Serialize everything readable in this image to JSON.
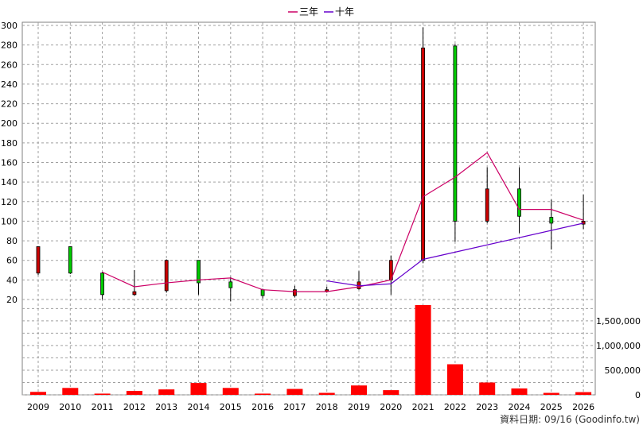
{
  "chart_data": {
    "type": "candlestick+line+bar",
    "legend": [
      {
        "label": "三年",
        "color": "#cc0066"
      },
      {
        "label": "十年",
        "color": "#6600cc"
      }
    ],
    "years": [
      "2009",
      "2010",
      "2011",
      "2012",
      "2013",
      "2014",
      "2015",
      "2016",
      "2017",
      "2018",
      "2019",
      "2020",
      "2021",
      "2022",
      "2023",
      "2024",
      "2025",
      "2026"
    ],
    "price_axis": {
      "ylim": [
        20,
        300
      ],
      "ticks": [
        20,
        40,
        60,
        80,
        100,
        120,
        140,
        160,
        180,
        200,
        220,
        240,
        260,
        280,
        300
      ]
    },
    "volume_axis": {
      "ylim": [
        0,
        1900000
      ],
      "ticks": [
        0,
        500000,
        1000000,
        1500000
      ],
      "tick_labels": [
        "0",
        "500,000",
        "1,000,000",
        "1,500,000"
      ]
    },
    "candles": [
      {
        "year": "2009",
        "open": 74,
        "close": 47,
        "high": 74,
        "low": 45
      },
      {
        "year": "2010",
        "open": 47,
        "close": 74,
        "high": 74,
        "low": 46
      },
      {
        "year": "2011",
        "open": 25,
        "close": 47,
        "high": 48,
        "low": 20
      },
      {
        "year": "2012",
        "open": 28,
        "close": 25,
        "high": 50,
        "low": 24
      },
      {
        "year": "2013",
        "open": 60,
        "close": 29,
        "high": 61,
        "low": 27
      },
      {
        "year": "2014",
        "open": 37,
        "close": 60,
        "high": 60,
        "low": 25
      },
      {
        "year": "2015",
        "open": 32,
        "close": 38,
        "high": 43,
        "low": 18
      },
      {
        "year": "2016",
        "open": 24,
        "close": 30,
        "high": 31,
        "low": 21
      },
      {
        "year": "2017",
        "open": 30,
        "close": 24,
        "high": 34,
        "low": 22
      },
      {
        "year": "2018",
        "open": 30,
        "close": 28,
        "high": 33,
        "low": 27
      },
      {
        "year": "2019",
        "open": 38,
        "close": 31,
        "high": 49,
        "low": 30
      },
      {
        "year": "2020",
        "open": 60,
        "close": 40,
        "high": 65,
        "low": 25
      },
      {
        "year": "2021",
        "open": 277,
        "close": 60,
        "high": 298,
        "low": 57
      },
      {
        "year": "2022",
        "open": 100,
        "close": 279,
        "high": 281,
        "low": 79
      },
      {
        "year": "2023",
        "open": 133,
        "close": 100,
        "high": 155,
        "low": 98
      },
      {
        "year": "2024",
        "open": 105,
        "close": 133,
        "high": 155,
        "low": 88
      },
      {
        "year": "2025",
        "open": 98,
        "close": 104,
        "high": 122,
        "low": 71
      },
      {
        "year": "2026",
        "open": 100,
        "close": 97,
        "high": 127,
        "low": 92
      }
    ],
    "series": [
      {
        "name": "三年",
        "color": "#cc0066",
        "points": [
          [
            "2011",
            48
          ],
          [
            "2012",
            33
          ],
          [
            "2013",
            37
          ],
          [
            "2014",
            40
          ],
          [
            "2015",
            42
          ],
          [
            "2016",
            30
          ],
          [
            "2017",
            28
          ],
          [
            "2018",
            28
          ],
          [
            "2019",
            33
          ],
          [
            "2020",
            40
          ],
          [
            "2021",
            125
          ],
          [
            "2022",
            145
          ],
          [
            "2023",
            170
          ],
          [
            "2024",
            112
          ],
          [
            "2025",
            112
          ],
          [
            "2026",
            101
          ]
        ]
      },
      {
        "name": "十年",
        "color": "#6600cc",
        "points": [
          [
            "2018",
            39
          ],
          [
            "2019",
            34
          ],
          [
            "2020",
            36
          ],
          [
            "2021",
            61
          ],
          [
            "2026",
            98
          ]
        ]
      }
    ],
    "volume": [
      60000,
      140000,
      25000,
      80000,
      110000,
      240000,
      140000,
      25000,
      120000,
      40000,
      190000,
      95000,
      1820000,
      620000,
      250000,
      130000,
      40000,
      55000
    ],
    "up_color": "#00cc00",
    "down_color": "#cc0000",
    "volume_color": "#ff0000",
    "grid": true
  },
  "source_text": "資料日期: 09/16  (Goodinfo.tw)"
}
